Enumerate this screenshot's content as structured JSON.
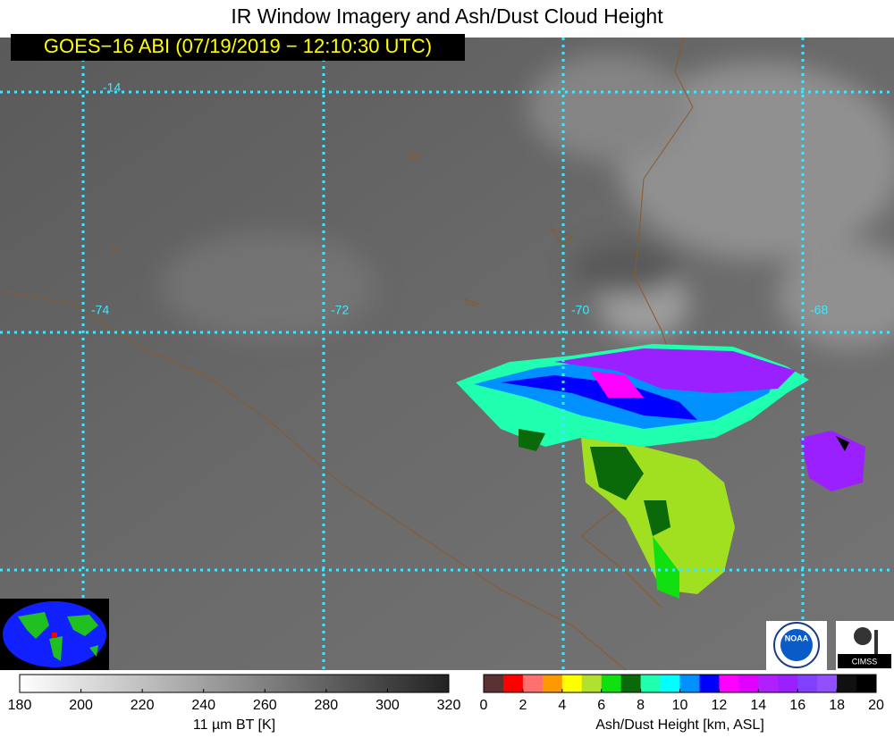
{
  "header": {
    "title": "IR Window Imagery and Ash/Dust Cloud Height",
    "timestamp": "GOES−16 ABI (07/19/2019 − 12:10:30 UTC)"
  },
  "map": {
    "grid_labels": [
      "-14",
      "-74",
      "-72",
      "-70",
      "-68"
    ]
  },
  "logos": [
    "NOAA",
    "CIMSS"
  ],
  "colorbars": [
    {
      "label": "11 µm BT [K]",
      "range": [
        180,
        320
      ],
      "ticks": [
        180,
        200,
        220,
        240,
        260,
        280,
        300,
        320
      ],
      "colors": [
        "#ffffff",
        "#222222"
      ]
    },
    {
      "label": "Ash/Dust Height [km, ASL]",
      "range": [
        0,
        20
      ],
      "ticks": [
        0,
        2,
        4,
        6,
        8,
        10,
        12,
        14,
        16,
        18,
        20
      ],
      "colors": [
        "#5a3232",
        "#ff0000",
        "#ff7070",
        "#ff9900",
        "#ffff00",
        "#b0e030",
        "#10e010",
        "#0a6a0a",
        "#20ffb0",
        "#00ffff",
        "#0090ff",
        "#0000ff",
        "#ff00ff",
        "#e000ff",
        "#b020ff",
        "#9a20ff",
        "#8040ff",
        "#9050ff",
        "#101010",
        "#000000"
      ]
    }
  ]
}
